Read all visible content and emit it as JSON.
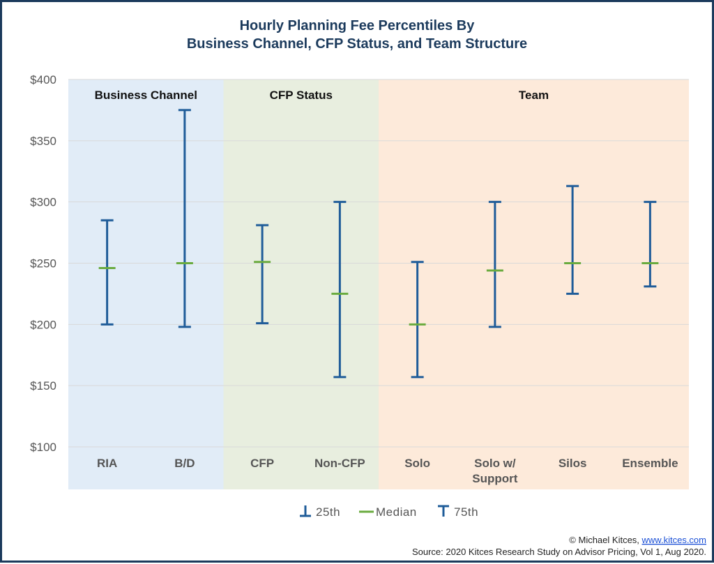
{
  "chart_data": {
    "type": "errorbar",
    "title": "Hourly Planning Fee Percentiles By",
    "subtitle": "Business Channel, CFP Status, and Team Structure",
    "ylim": [
      100,
      400
    ],
    "yticks": [
      100,
      150,
      200,
      250,
      300,
      350,
      400
    ],
    "ytick_labels": [
      "$100",
      "$150",
      "$200",
      "$250",
      "$300",
      "$350",
      "$400"
    ],
    "grid": true,
    "legend_placement": "bottom-center",
    "groups": [
      {
        "name": "Business Channel",
        "color": "#e1ecf7",
        "categories": [
          "RIA",
          "B/D"
        ]
      },
      {
        "name": "CFP Status",
        "color": "#e8eedf",
        "categories": [
          "CFP",
          "Non-CFP"
        ]
      },
      {
        "name": "Team",
        "color": "#fdeada",
        "categories": [
          "Solo",
          "Solo w/ Support",
          "Silos",
          "Ensemble"
        ]
      }
    ],
    "categories": [
      [
        "RIA"
      ],
      [
        "B/D"
      ],
      [
        "CFP"
      ],
      [
        "Non-CFP"
      ],
      [
        "Solo"
      ],
      [
        "Solo w/",
        "Support"
      ],
      [
        "Silos"
      ],
      [
        "Ensemble"
      ]
    ],
    "series": [
      {
        "name": "25th",
        "color": "#1f5c99",
        "values": [
          200,
          198,
          201,
          157,
          157,
          198,
          225,
          231
        ]
      },
      {
        "name": "Median",
        "color": "#6aab3f",
        "values": [
          246,
          250,
          251,
          225,
          200,
          244,
          250,
          250
        ]
      },
      {
        "name": "75th",
        "color": "#1f5c99",
        "values": [
          285,
          375,
          281,
          300,
          251,
          300,
          313,
          300
        ]
      }
    ]
  },
  "credit": {
    "line1_prefix": "© Michael Kitces, ",
    "line1_link": "www.kitces.com",
    "line2": "Source: 2020 Kitces Research Study on Advisor Pricing, Vol 1, Aug 2020."
  }
}
